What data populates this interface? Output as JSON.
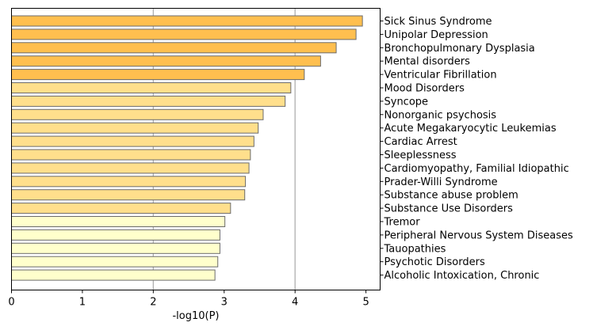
{
  "chart_data": {
    "type": "bar",
    "orientation": "horizontal",
    "xlabel": "-log10(P)",
    "xlim": [
      0,
      5.2
    ],
    "xticks": [
      "0",
      "1",
      "2",
      "3",
      "4",
      "5"
    ],
    "vertical_gridlines_at": [
      2,
      4
    ],
    "categories": [
      "Sick Sinus Syndrome",
      "Unipolar Depression",
      "Bronchopulmonary Dysplasia",
      "Mental disorders",
      "Ventricular Fibrillation",
      "Mood Disorders",
      "Syncope",
      "Nonorganic psychosis",
      "Acute Megakaryocytic Leukemias",
      "Cardiac Arrest",
      "Sleeplessness",
      "Cardiomyopathy, Familial Idiopathic",
      "Prader-Willi Syndrome",
      "Substance abuse problem",
      "Substance Use Disorders",
      "Tremor",
      "Peripheral Nervous System Diseases",
      "Tauopathies",
      "Psychotic Disorders",
      "Alcoholic Intoxication, Chronic"
    ],
    "values": [
      4.95,
      4.86,
      4.58,
      4.36,
      4.13,
      3.94,
      3.86,
      3.55,
      3.48,
      3.42,
      3.37,
      3.35,
      3.3,
      3.29,
      3.09,
      3.01,
      2.94,
      2.94,
      2.91,
      2.87
    ],
    "colors": [
      "#ffbf4f",
      "#ffbf4f",
      "#ffbf4f",
      "#ffbf4f",
      "#ffbf4f",
      "#ffdf8c",
      "#ffdf8c",
      "#ffdf8c",
      "#ffdf8c",
      "#ffdf8c",
      "#ffdf8c",
      "#ffdf8c",
      "#ffdf8c",
      "#ffdf8c",
      "#ffdf8c",
      "#ffffcc",
      "#ffffcc",
      "#ffffcc",
      "#ffffcc",
      "#ffffcc"
    ],
    "bar_edge_color": "#6b6b6b",
    "grid_color": "#b0b0b0",
    "grid": true,
    "legend": false
  }
}
